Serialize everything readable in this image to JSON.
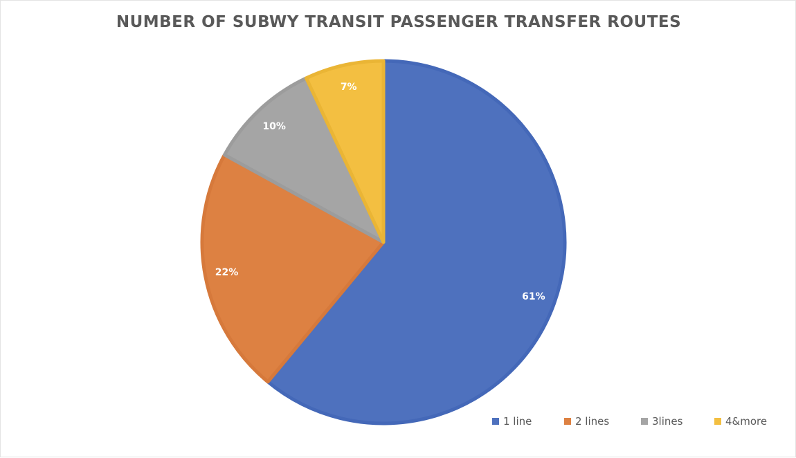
{
  "chart_data": {
    "type": "pie",
    "title": "NUMBER OF SUBWY TRANSIT PASSENGER TRANSFER ROUTES",
    "categories": [
      "1 line",
      "2 lines",
      "3lines",
      "4&more"
    ],
    "values": [
      61,
      22,
      10,
      7
    ],
    "labels": [
      "61%",
      "22%",
      "10%",
      "7%"
    ],
    "colors": [
      "#4e71be",
      "#dd8142",
      "#a5a5a5",
      "#f3bf41"
    ],
    "border_colors": [
      "#4468b8",
      "#d6793b",
      "#9c9c9c",
      "#eab535"
    ],
    "legend_position": "bottom-right"
  }
}
